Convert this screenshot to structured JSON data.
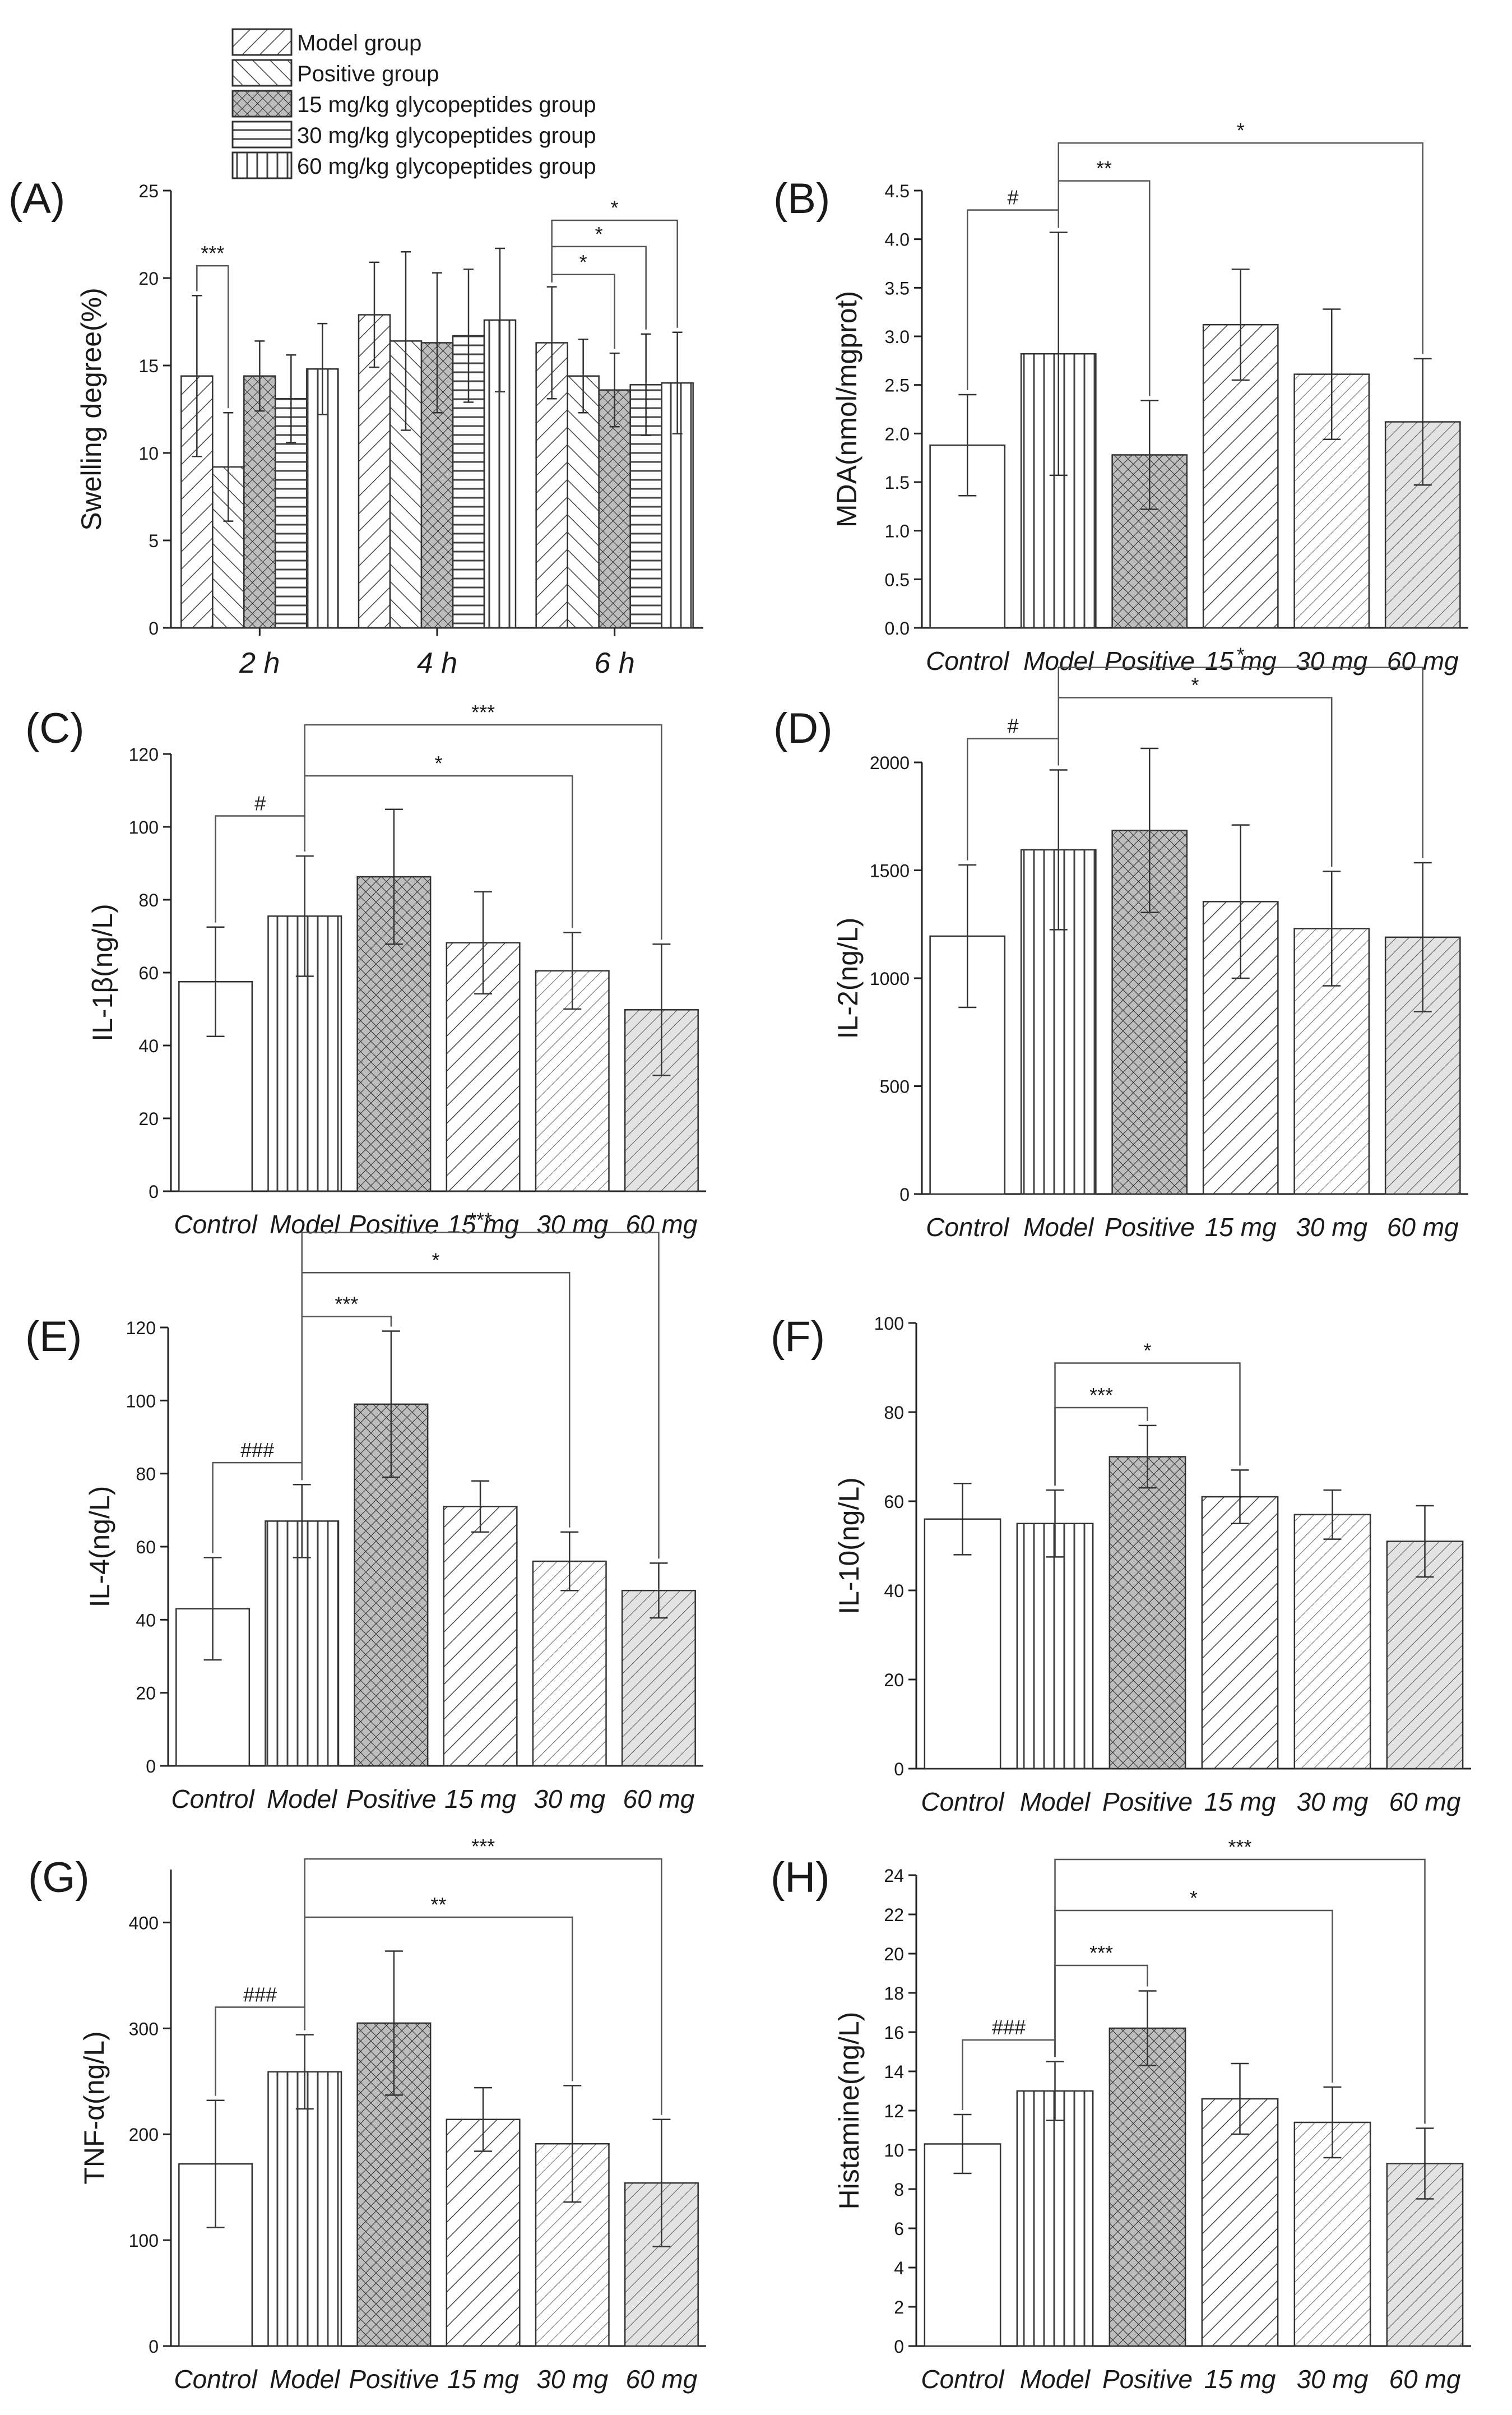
{
  "legend": {
    "items": [
      {
        "label": "Model group",
        "pattern": "hatch-bdiag"
      },
      {
        "label": "Positive group",
        "pattern": "hatch-fdiag"
      },
      {
        "label": "15 mg/kg glycopeptides group",
        "pattern": "hatch-cross"
      },
      {
        "label": "30 mg/kg glycopeptides group",
        "pattern": "hatch-horiz"
      },
      {
        "label": "60 mg/kg glycopeptides group",
        "pattern": "hatch-vert"
      }
    ]
  },
  "colors": {
    "axis": "#222222",
    "bar_stroke": "#333333",
    "bracket": "#555555",
    "text": "#1a1a1a",
    "background": "#ffffff"
  },
  "chart_data": [
    {
      "panel": "(A)",
      "type": "bar",
      "ylabel": "Swelling degree(%)",
      "categories": [
        "2 h",
        "4 h",
        "6 h"
      ],
      "ylim": [
        0,
        25
      ],
      "yticks": [
        0,
        5,
        10,
        15,
        20,
        25
      ],
      "series": [
        {
          "name": "Model group",
          "pattern": "hatch-bdiag",
          "values": [
            14.4,
            17.9,
            16.3
          ],
          "errors": [
            4.6,
            3.0,
            3.2
          ]
        },
        {
          "name": "Positive group",
          "pattern": "hatch-fdiag",
          "values": [
            9.2,
            16.4,
            14.4
          ],
          "errors": [
            3.1,
            5.1,
            2.1
          ]
        },
        {
          "name": "15 mg/kg glycopeptides group",
          "pattern": "hatch-cross",
          "values": [
            14.4,
            16.3,
            13.6
          ],
          "errors": [
            2.0,
            4.0,
            2.1
          ]
        },
        {
          "name": "30 mg/kg glycopeptides group",
          "pattern": "hatch-horiz",
          "values": [
            13.1,
            16.7,
            13.9
          ],
          "errors": [
            2.5,
            3.8,
            2.9
          ]
        },
        {
          "name": "60 mg/kg glycopeptides group",
          "pattern": "hatch-vert",
          "values": [
            14.8,
            17.6,
            14.0
          ],
          "errors": [
            2.6,
            4.1,
            2.9
          ]
        }
      ],
      "brackets": [
        {
          "group": 0,
          "from_series": 0,
          "to_series": 1,
          "y": 20.7,
          "label": "***"
        },
        {
          "group": 2,
          "from_series": 0,
          "to_series": 2,
          "y": 20.2,
          "label": "*"
        },
        {
          "group": 2,
          "from_series": 0,
          "to_series": 3,
          "y": 21.8,
          "label": "*"
        },
        {
          "group": 2,
          "from_series": 0,
          "to_series": 4,
          "y": 23.3,
          "label": "*"
        }
      ]
    },
    {
      "panel": "(B)",
      "type": "bar",
      "ylabel": "MDA(nmol/mgprot)",
      "categories": [
        "Control",
        "Model",
        "Positive",
        "15 mg",
        "30 mg",
        "60 mg"
      ],
      "patterns": [
        "blank",
        "vert",
        "cross",
        "bdiag",
        "bdiag-fine",
        "bdiag-gray"
      ],
      "values": [
        1.88,
        2.82,
        1.78,
        3.12,
        2.61,
        2.12
      ],
      "errors": [
        0.52,
        1.25,
        0.56,
        0.57,
        0.67,
        0.65
      ],
      "ylim": [
        0,
        4.5
      ],
      "yticks": [
        0.0,
        0.5,
        1.0,
        1.5,
        2.0,
        2.5,
        3.0,
        3.5,
        4.0,
        4.5
      ],
      "tick_labels": [
        "0.0",
        "0.5",
        "1.0",
        "1.5",
        "2.0",
        "2.5",
        "3.0",
        "3.5",
        "4.0",
        "4.5"
      ],
      "brackets": [
        {
          "from": 0,
          "to": 1,
          "y": 4.3,
          "label": "#"
        },
        {
          "from": 1,
          "to": 2,
          "y": 4.6,
          "label": "**"
        },
        {
          "from": 1,
          "to": 5,
          "y": 4.99,
          "label": "*"
        }
      ]
    },
    {
      "panel": "(C)",
      "type": "bar",
      "ylabel": "IL-1β(ng/L)",
      "categories": [
        "Control",
        "Model",
        "Positive",
        "15 mg",
        "30 mg",
        "60 mg"
      ],
      "patterns": [
        "blank",
        "vert",
        "cross",
        "bdiag",
        "bdiag-fine",
        "bdiag-gray"
      ],
      "values": [
        57.5,
        75.5,
        86.3,
        68.2,
        60.5,
        49.8
      ],
      "errors": [
        15.0,
        16.5,
        18.5,
        14.0,
        10.5,
        18.0
      ],
      "ylim": [
        0,
        120
      ],
      "yticks": [
        0,
        20,
        40,
        60,
        80,
        100,
        120
      ],
      "brackets": [
        {
          "from": 0,
          "to": 1,
          "y": 103,
          "label": "#"
        },
        {
          "from": 1,
          "to": 4,
          "y": 114,
          "label": "*"
        },
        {
          "from": 1,
          "to": 5,
          "y": 128,
          "label": "***"
        }
      ]
    },
    {
      "panel": "(D)",
      "type": "bar",
      "ylabel": "IL-2(ng/L)",
      "categories": [
        "Control",
        "Model",
        "Positive",
        "15 mg",
        "30 mg",
        "60 mg"
      ],
      "patterns": [
        "blank",
        "vert",
        "cross",
        "bdiag",
        "bdiag-fine",
        "bdiag-gray"
      ],
      "values": [
        1195,
        1595,
        1685,
        1355,
        1230,
        1190
      ],
      "errors": [
        330,
        370,
        380,
        355,
        265,
        345
      ],
      "ylim": [
        0,
        2000
      ],
      "yticks": [
        0,
        500,
        1000,
        1500,
        2000
      ],
      "brackets": [
        {
          "from": 0,
          "to": 1,
          "y": 2110,
          "label": "#"
        },
        {
          "from": 1,
          "to": 4,
          "y": 2300,
          "label": "*"
        },
        {
          "from": 1,
          "to": 5,
          "y": 2440,
          "label": "*"
        }
      ]
    },
    {
      "panel": "(E)",
      "type": "bar",
      "ylabel": "IL-4(ng/L)",
      "categories": [
        "Control",
        "Model",
        "Positive",
        "15 mg",
        "30 mg",
        "60 mg"
      ],
      "patterns": [
        "blank",
        "vert",
        "cross",
        "bdiag",
        "bdiag-fine",
        "bdiag-gray"
      ],
      "values": [
        43,
        67,
        99,
        71,
        56,
        48
      ],
      "errors": [
        14,
        10,
        20,
        7,
        8,
        7.5
      ],
      "ylim": [
        0,
        120
      ],
      "yticks": [
        0,
        20,
        40,
        60,
        80,
        100,
        120
      ],
      "brackets": [
        {
          "from": 0,
          "to": 1,
          "y": 83,
          "label": "###"
        },
        {
          "from": 1,
          "to": 2,
          "y": 123,
          "label": "***"
        },
        {
          "from": 1,
          "to": 4,
          "y": 135,
          "label": "*"
        },
        {
          "from": 1,
          "to": 5,
          "y": 146,
          "label": "***"
        }
      ]
    },
    {
      "panel": "(F)",
      "type": "bar",
      "ylabel": "IL-10(ng/L)",
      "categories": [
        "Control",
        "Model",
        "Positive",
        "15 mg",
        "30 mg",
        "60 mg"
      ],
      "patterns": [
        "blank",
        "vert",
        "cross",
        "bdiag",
        "bdiag-fine",
        "bdiag-gray"
      ],
      "values": [
        56,
        55,
        70,
        61,
        57,
        51
      ],
      "errors": [
        8,
        7.5,
        7,
        6,
        5.5,
        8
      ],
      "ylim": [
        0,
        100
      ],
      "yticks": [
        0,
        20,
        40,
        60,
        80,
        100
      ],
      "brackets": [
        {
          "from": 1,
          "to": 2,
          "y": 81,
          "label": "***"
        },
        {
          "from": 1,
          "to": 3,
          "y": 91,
          "label": "*"
        }
      ]
    },
    {
      "panel": "(G)",
      "type": "bar",
      "ylabel": "TNF-α(ng/L)",
      "categories": [
        "Control",
        "Model",
        "Positive",
        "15 mg",
        "30 mg",
        "60 mg"
      ],
      "patterns": [
        "blank",
        "vert",
        "cross",
        "bdiag",
        "bdiag-fine",
        "bdiag-gray"
      ],
      "values": [
        172,
        259,
        305,
        214,
        191,
        154
      ],
      "errors": [
        60,
        35,
        68,
        30,
        55,
        60
      ],
      "ylim": [
        0,
        450
      ],
      "yticks": [
        0,
        100,
        200,
        300,
        400
      ],
      "brackets": [
        {
          "from": 0,
          "to": 1,
          "y": 320,
          "label": "###"
        },
        {
          "from": 1,
          "to": 4,
          "y": 405,
          "label": "**"
        },
        {
          "from": 1,
          "to": 5,
          "y": 460,
          "label": "***"
        }
      ]
    },
    {
      "panel": "(H)",
      "type": "bar",
      "ylabel": "Histamine(ng/L)",
      "categories": [
        "Control",
        "Model",
        "Positive",
        "15 mg",
        "30 mg",
        "60 mg"
      ],
      "patterns": [
        "blank",
        "vert",
        "cross",
        "bdiag",
        "bdiag-fine",
        "bdiag-gray"
      ],
      "values": [
        10.3,
        13.0,
        16.2,
        12.6,
        11.4,
        9.3
      ],
      "errors": [
        1.5,
        1.5,
        1.9,
        1.8,
        1.8,
        1.8
      ],
      "ylim": [
        0,
        24
      ],
      "yticks": [
        0,
        2,
        4,
        6,
        8,
        10,
        12,
        14,
        16,
        18,
        20,
        22,
        24
      ],
      "brackets": [
        {
          "from": 0,
          "to": 1,
          "y": 15.6,
          "label": "###"
        },
        {
          "from": 1,
          "to": 2,
          "y": 19.4,
          "label": "***"
        },
        {
          "from": 1,
          "to": 4,
          "y": 22.2,
          "label": "*"
        },
        {
          "from": 1,
          "to": 5,
          "y": 24.8,
          "label": "***"
        }
      ]
    }
  ]
}
